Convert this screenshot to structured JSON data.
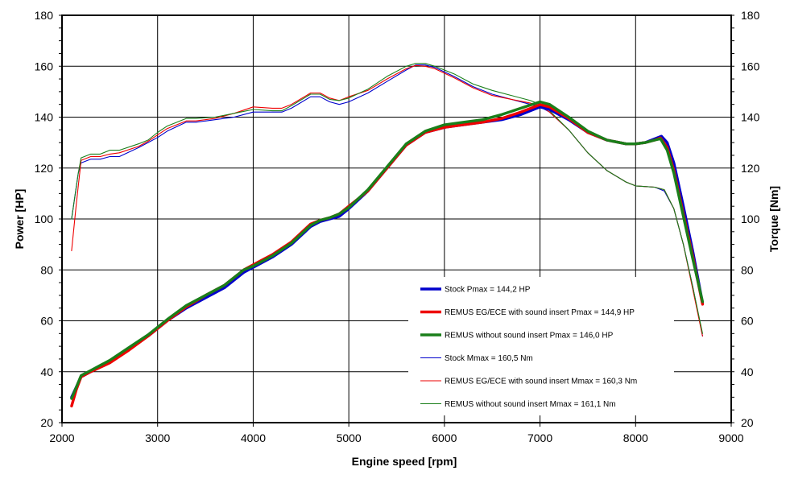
{
  "chart_data": {
    "type": "line",
    "xlabel": "Engine speed [rpm]",
    "ylabel_left": "Power [HP]",
    "ylabel_right": "Torque [Nm]",
    "xlim": [
      2000,
      9000
    ],
    "ylim": [
      20,
      180
    ],
    "ylim_right": [
      20,
      180
    ],
    "x_ticks": [
      "2000",
      "3000",
      "4000",
      "5000",
      "6000",
      "7000",
      "8000",
      "9000"
    ],
    "y_ticks": [
      "20",
      "40",
      "60",
      "80",
      "100",
      "120",
      "140",
      "160",
      "180"
    ],
    "grid": true,
    "legend_position": "lower-right",
    "series": [
      {
        "name": "Stock Pmax = 144,2 HP",
        "color": "#0000cc",
        "style": "thick",
        "points": [
          [
            2100,
            30
          ],
          [
            2200,
            38
          ],
          [
            2300,
            40
          ],
          [
            2500,
            44
          ],
          [
            2700,
            49
          ],
          [
            2900,
            54
          ],
          [
            3100,
            60
          ],
          [
            3300,
            65
          ],
          [
            3500,
            69
          ],
          [
            3700,
            73
          ],
          [
            3900,
            79
          ],
          [
            4000,
            81
          ],
          [
            4200,
            85
          ],
          [
            4400,
            90
          ],
          [
            4600,
            97
          ],
          [
            4700,
            99
          ],
          [
            4800,
            100
          ],
          [
            4900,
            101
          ],
          [
            5000,
            104
          ],
          [
            5200,
            111
          ],
          [
            5400,
            120
          ],
          [
            5600,
            129
          ],
          [
            5800,
            134
          ],
          [
            6000,
            136
          ],
          [
            6200,
            137
          ],
          [
            6400,
            138
          ],
          [
            6600,
            139
          ],
          [
            6800,
            141
          ],
          [
            7000,
            144
          ],
          [
            7100,
            143
          ],
          [
            7300,
            139
          ],
          [
            7500,
            134
          ],
          [
            7700,
            131
          ],
          [
            7900,
            129.5
          ],
          [
            8000,
            129.5
          ],
          [
            8100,
            130
          ],
          [
            8200,
            131.5
          ],
          [
            8270,
            132.5
          ],
          [
            8330,
            130
          ],
          [
            8400,
            122
          ],
          [
            8500,
            105
          ],
          [
            8600,
            87
          ],
          [
            8700,
            67
          ]
        ]
      },
      {
        "name": "REMUS EG/ECE with sound insert Pmax =  144,9 HP",
        "color": "#ee0000",
        "style": "thick",
        "points": [
          [
            2100,
            26.5
          ],
          [
            2150,
            33
          ],
          [
            2200,
            38
          ],
          [
            2300,
            40
          ],
          [
            2500,
            43.5
          ],
          [
            2700,
            48.5
          ],
          [
            2900,
            54
          ],
          [
            3100,
            60
          ],
          [
            3300,
            65.5
          ],
          [
            3500,
            70
          ],
          [
            3700,
            74
          ],
          [
            3900,
            80
          ],
          [
            4000,
            82
          ],
          [
            4200,
            86
          ],
          [
            4400,
            91
          ],
          [
            4600,
            98
          ],
          [
            4700,
            99.5
          ],
          [
            4800,
            100.5
          ],
          [
            4900,
            102
          ],
          [
            5000,
            105
          ],
          [
            5200,
            111
          ],
          [
            5400,
            120
          ],
          [
            5600,
            129
          ],
          [
            5800,
            134
          ],
          [
            6000,
            136
          ],
          [
            6200,
            137
          ],
          [
            6400,
            138
          ],
          [
            6600,
            139.5
          ],
          [
            6800,
            142
          ],
          [
            7000,
            144.9
          ],
          [
            7100,
            144
          ],
          [
            7300,
            139.5
          ],
          [
            7500,
            134
          ],
          [
            7700,
            131
          ],
          [
            7900,
            129.5
          ],
          [
            8000,
            129.5
          ],
          [
            8100,
            130
          ],
          [
            8200,
            131
          ],
          [
            8260,
            131.8
          ],
          [
            8330,
            128
          ],
          [
            8400,
            119
          ],
          [
            8500,
            102
          ],
          [
            8600,
            85
          ],
          [
            8700,
            66.5
          ]
        ]
      },
      {
        "name": "REMUS without sound insert Pmax = 146,0 HP",
        "color": "#1a7f1a",
        "style": "thick",
        "points": [
          [
            2100,
            29.5
          ],
          [
            2200,
            38.5
          ],
          [
            2300,
            40.5
          ],
          [
            2500,
            44.5
          ],
          [
            2700,
            49.5
          ],
          [
            2900,
            54.5
          ],
          [
            3100,
            60.5
          ],
          [
            3300,
            66
          ],
          [
            3500,
            70
          ],
          [
            3700,
            74
          ],
          [
            3900,
            80
          ],
          [
            4000,
            81.5
          ],
          [
            4200,
            85.5
          ],
          [
            4400,
            90.5
          ],
          [
            4600,
            97.5
          ],
          [
            4700,
            99.5
          ],
          [
            4800,
            100.5
          ],
          [
            4900,
            102
          ],
          [
            5000,
            104.5
          ],
          [
            5200,
            111.5
          ],
          [
            5400,
            120.5
          ],
          [
            5600,
            129.5
          ],
          [
            5800,
            134.5
          ],
          [
            6000,
            137
          ],
          [
            6200,
            138
          ],
          [
            6400,
            139
          ],
          [
            6600,
            141
          ],
          [
            6800,
            143.5
          ],
          [
            7000,
            146
          ],
          [
            7100,
            145
          ],
          [
            7300,
            140
          ],
          [
            7500,
            134.5
          ],
          [
            7700,
            131
          ],
          [
            7900,
            129.5
          ],
          [
            8000,
            129.5
          ],
          [
            8100,
            130
          ],
          [
            8200,
            131
          ],
          [
            8260,
            131.5
          ],
          [
            8330,
            127
          ],
          [
            8400,
            118
          ],
          [
            8500,
            101
          ],
          [
            8600,
            84
          ],
          [
            8700,
            67.5
          ]
        ]
      },
      {
        "name": "Stock Mmax = 160,5 Nm",
        "color": "#0000cc",
        "style": "thin",
        "points": [
          [
            2100,
            100
          ],
          [
            2170,
            118
          ],
          [
            2200,
            122
          ],
          [
            2300,
            123.5
          ],
          [
            2400,
            123.5
          ],
          [
            2500,
            124.5
          ],
          [
            2600,
            124.5
          ],
          [
            2800,
            128
          ],
          [
            2900,
            130
          ],
          [
            3000,
            132
          ],
          [
            3100,
            134.5
          ],
          [
            3300,
            138
          ],
          [
            3400,
            138
          ],
          [
            3600,
            139
          ],
          [
            3800,
            140
          ],
          [
            4000,
            142
          ],
          [
            4200,
            142
          ],
          [
            4300,
            142
          ],
          [
            4400,
            143.5
          ],
          [
            4600,
            148
          ],
          [
            4700,
            148
          ],
          [
            4800,
            146
          ],
          [
            4900,
            145
          ],
          [
            5000,
            146
          ],
          [
            5200,
            149.5
          ],
          [
            5400,
            154
          ],
          [
            5600,
            158.5
          ],
          [
            5700,
            160.5
          ],
          [
            5800,
            160.5
          ],
          [
            5900,
            159.5
          ],
          [
            6100,
            156
          ],
          [
            6300,
            152
          ],
          [
            6500,
            149
          ],
          [
            6700,
            147
          ],
          [
            6900,
            145
          ],
          [
            7000,
            144
          ],
          [
            7100,
            142
          ],
          [
            7300,
            135
          ],
          [
            7500,
            126
          ],
          [
            7700,
            119
          ],
          [
            7900,
            114.5
          ],
          [
            8000,
            113
          ],
          [
            8200,
            112.5
          ],
          [
            8300,
            111
          ],
          [
            8400,
            104
          ],
          [
            8500,
            90
          ],
          [
            8600,
            73
          ],
          [
            8700,
            54
          ]
        ]
      },
      {
        "name": "REMUS EG/ECE with sound insert Mmax = 160,3 Nm",
        "color": "#ee0000",
        "style": "thin",
        "points": [
          [
            2100,
            87.5
          ],
          [
            2150,
            106
          ],
          [
            2200,
            123
          ],
          [
            2300,
            124.5
          ],
          [
            2400,
            124.5
          ],
          [
            2500,
            125.5
          ],
          [
            2600,
            126
          ],
          [
            2800,
            128.5
          ],
          [
            2900,
            130.5
          ],
          [
            3000,
            133
          ],
          [
            3100,
            135.5
          ],
          [
            3300,
            138.5
          ],
          [
            3400,
            138.5
          ],
          [
            3600,
            139.5
          ],
          [
            3800,
            141.5
          ],
          [
            4000,
            144
          ],
          [
            4200,
            143.5
          ],
          [
            4300,
            143.5
          ],
          [
            4400,
            145
          ],
          [
            4600,
            149.5
          ],
          [
            4700,
            149.5
          ],
          [
            4800,
            147.5
          ],
          [
            4900,
            146.5
          ],
          [
            5000,
            148
          ],
          [
            5200,
            150.5
          ],
          [
            5400,
            155
          ],
          [
            5600,
            159
          ],
          [
            5700,
            160.3
          ],
          [
            5800,
            160
          ],
          [
            5900,
            159
          ],
          [
            6100,
            155.5
          ],
          [
            6300,
            151.5
          ],
          [
            6500,
            148.5
          ],
          [
            6700,
            147
          ],
          [
            6900,
            145.5
          ],
          [
            7000,
            144.5
          ],
          [
            7100,
            142
          ],
          [
            7300,
            135
          ],
          [
            7500,
            126
          ],
          [
            7700,
            119
          ],
          [
            7900,
            114.5
          ],
          [
            8000,
            113
          ],
          [
            8200,
            112.5
          ],
          [
            8300,
            111.5
          ],
          [
            8400,
            104
          ],
          [
            8500,
            90
          ],
          [
            8600,
            72
          ],
          [
            8700,
            54
          ]
        ]
      },
      {
        "name": "REMUS without sound insert Mmax = 161,1 Nm",
        "color": "#1a7f1a",
        "style": "thin",
        "points": [
          [
            2100,
            100
          ],
          [
            2170,
            118
          ],
          [
            2200,
            124
          ],
          [
            2300,
            125.5
          ],
          [
            2400,
            125.5
          ],
          [
            2500,
            127
          ],
          [
            2600,
            127
          ],
          [
            2800,
            129.5
          ],
          [
            2900,
            131
          ],
          [
            3000,
            134
          ],
          [
            3100,
            136.5
          ],
          [
            3300,
            139.5
          ],
          [
            3400,
            139.5
          ],
          [
            3600,
            140
          ],
          [
            3800,
            141.5
          ],
          [
            4000,
            143
          ],
          [
            4200,
            142.5
          ],
          [
            4300,
            142.5
          ],
          [
            4400,
            144.5
          ],
          [
            4600,
            149
          ],
          [
            4700,
            149
          ],
          [
            4800,
            147
          ],
          [
            4900,
            146.5
          ],
          [
            5000,
            147.5
          ],
          [
            5200,
            151
          ],
          [
            5400,
            156
          ],
          [
            5600,
            160
          ],
          [
            5700,
            161.1
          ],
          [
            5800,
            161.1
          ],
          [
            5900,
            160
          ],
          [
            6100,
            157
          ],
          [
            6300,
            153
          ],
          [
            6500,
            150.5
          ],
          [
            6700,
            148.5
          ],
          [
            6900,
            146.5
          ],
          [
            7000,
            145
          ],
          [
            7100,
            142.5
          ],
          [
            7300,
            135
          ],
          [
            7500,
            126
          ],
          [
            7700,
            119
          ],
          [
            7900,
            114.5
          ],
          [
            8000,
            113
          ],
          [
            8200,
            112.5
          ],
          [
            8300,
            111.5
          ],
          [
            8400,
            104
          ],
          [
            8500,
            90
          ],
          [
            8600,
            73
          ],
          [
            8700,
            55
          ]
        ]
      }
    ]
  }
}
